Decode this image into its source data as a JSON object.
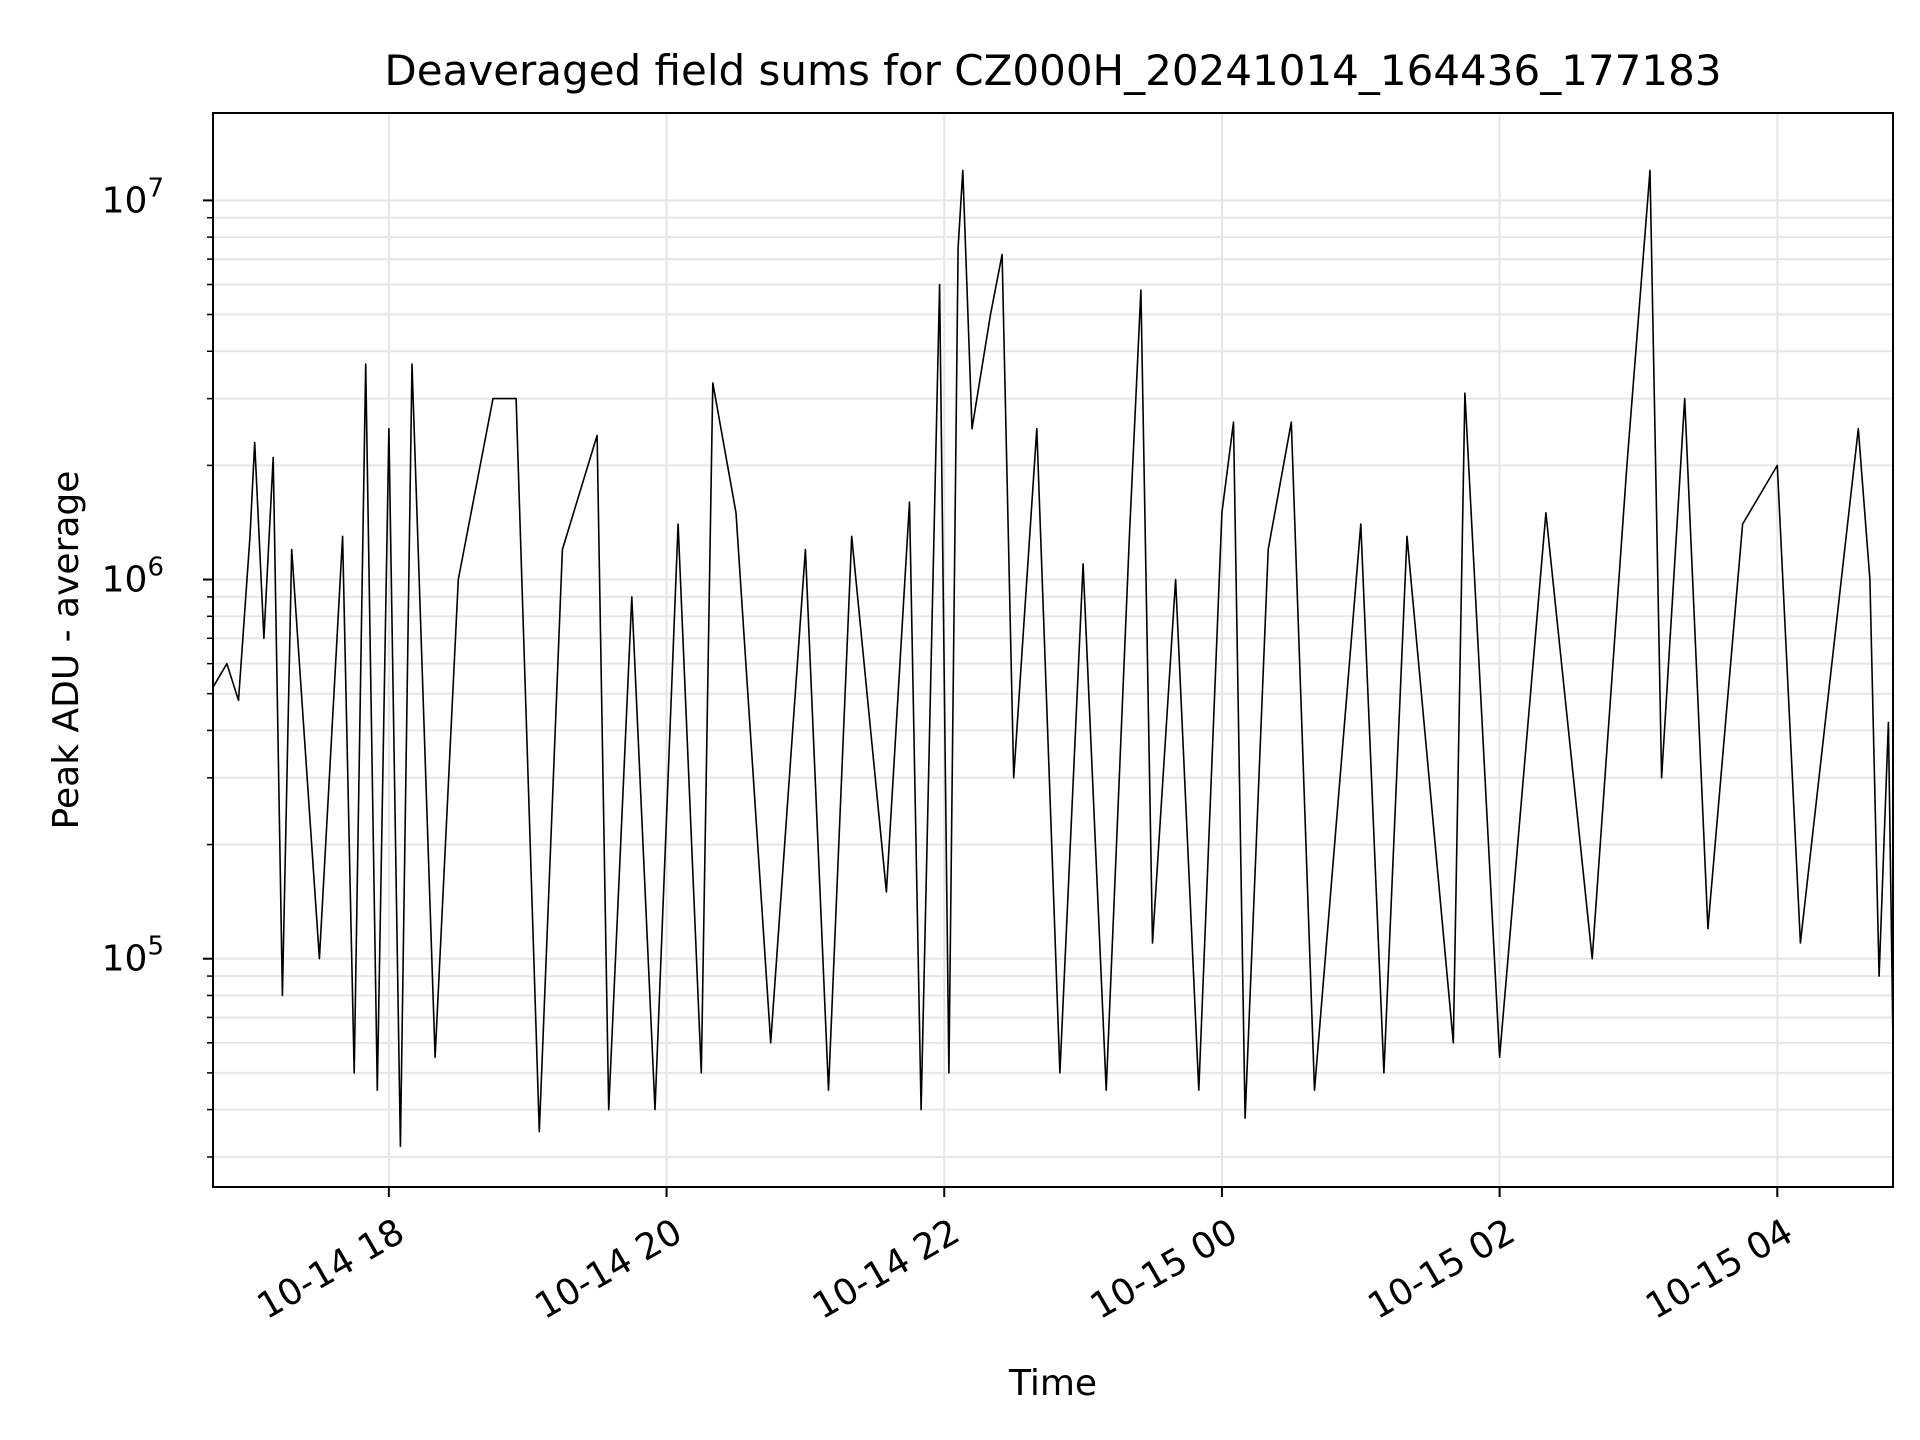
{
  "chart_data": {
    "type": "line",
    "title": "Deaveraged field sums for CZ000H_20241014_164436_177183",
    "xlabel": "Time",
    "ylabel": "Peak ADU - average",
    "x_axis_type": "datetime",
    "y_scale": "log",
    "xlim": [
      "2024-10-14 16:44",
      "2024-10-15 04:50"
    ],
    "ylim": [
      25000,
      17000000
    ],
    "x_ticks": [
      {
        "label": "10-14 18",
        "time": "2024-10-14 18:00"
      },
      {
        "label": "10-14 20",
        "time": "2024-10-14 20:00"
      },
      {
        "label": "10-14 22",
        "time": "2024-10-14 22:00"
      },
      {
        "label": "10-15 00",
        "time": "2024-10-15 00:00"
      },
      {
        "label": "10-15 02",
        "time": "2024-10-15 02:00"
      },
      {
        "label": "10-15 04",
        "time": "2024-10-15 04:00"
      }
    ],
    "y_ticks": [
      {
        "base": "10",
        "exp": "5",
        "value": 100000
      },
      {
        "base": "10",
        "exp": "6",
        "value": 1000000
      },
      {
        "base": "10",
        "exp": "7",
        "value": 10000000
      }
    ],
    "grid": true,
    "legend": "none",
    "series": [
      {
        "color": "#000000",
        "points": [
          [
            "2024-10-14 16:44",
            520000
          ],
          [
            "2024-10-14 16:50",
            600000
          ],
          [
            "2024-10-14 16:55",
            480000
          ],
          [
            "2024-10-14 17:00",
            1300000
          ],
          [
            "2024-10-14 17:02",
            2300000
          ],
          [
            "2024-10-14 17:06",
            700000
          ],
          [
            "2024-10-14 17:10",
            2100000
          ],
          [
            "2024-10-14 17:14",
            80000
          ],
          [
            "2024-10-14 17:18",
            1200000
          ],
          [
            "2024-10-14 17:30",
            100000
          ],
          [
            "2024-10-14 17:40",
            1300000
          ],
          [
            "2024-10-14 17:45",
            50000
          ],
          [
            "2024-10-14 17:50",
            3700000
          ],
          [
            "2024-10-14 17:55",
            45000
          ],
          [
            "2024-10-14 18:00",
            2500000
          ],
          [
            "2024-10-14 18:05",
            32000
          ],
          [
            "2024-10-14 18:10",
            3700000
          ],
          [
            "2024-10-14 18:20",
            55000
          ],
          [
            "2024-10-14 18:30",
            1000000
          ],
          [
            "2024-10-14 18:45",
            3000000
          ],
          [
            "2024-10-14 18:55",
            3000000
          ],
          [
            "2024-10-14 19:05",
            35000
          ],
          [
            "2024-10-14 19:15",
            1200000
          ],
          [
            "2024-10-14 19:30",
            2400000
          ],
          [
            "2024-10-14 19:35",
            40000
          ],
          [
            "2024-10-14 19:45",
            900000
          ],
          [
            "2024-10-14 19:55",
            40000
          ],
          [
            "2024-10-14 20:05",
            1400000
          ],
          [
            "2024-10-14 20:15",
            50000
          ],
          [
            "2024-10-14 20:20",
            3300000
          ],
          [
            "2024-10-14 20:30",
            1500000
          ],
          [
            "2024-10-14 20:45",
            60000
          ],
          [
            "2024-10-14 21:00",
            1200000
          ],
          [
            "2024-10-14 21:10",
            45000
          ],
          [
            "2024-10-14 21:20",
            1300000
          ],
          [
            "2024-10-14 21:35",
            150000
          ],
          [
            "2024-10-14 21:45",
            1600000
          ],
          [
            "2024-10-14 21:50",
            40000
          ],
          [
            "2024-10-14 21:58",
            6000000
          ],
          [
            "2024-10-14 22:02",
            50000
          ],
          [
            "2024-10-14 22:06",
            7500000
          ],
          [
            "2024-10-14 22:08",
            12000000
          ],
          [
            "2024-10-14 22:12",
            2500000
          ],
          [
            "2024-10-14 22:20",
            5000000
          ],
          [
            "2024-10-14 22:25",
            7200000
          ],
          [
            "2024-10-14 22:30",
            300000
          ],
          [
            "2024-10-14 22:40",
            2500000
          ],
          [
            "2024-10-14 22:50",
            50000
          ],
          [
            "2024-10-14 23:00",
            1100000
          ],
          [
            "2024-10-14 23:10",
            45000
          ],
          [
            "2024-10-14 23:20",
            1300000
          ],
          [
            "2024-10-14 23:25",
            5800000
          ],
          [
            "2024-10-14 23:30",
            110000
          ],
          [
            "2024-10-14 23:40",
            1000000
          ],
          [
            "2024-10-14 23:50",
            45000
          ],
          [
            "2024-10-15 00:00",
            1500000
          ],
          [
            "2024-10-15 00:05",
            2600000
          ],
          [
            "2024-10-15 00:10",
            38000
          ],
          [
            "2024-10-15 00:20",
            1200000
          ],
          [
            "2024-10-15 00:30",
            2600000
          ],
          [
            "2024-10-15 00:40",
            45000
          ],
          [
            "2024-10-15 01:00",
            1400000
          ],
          [
            "2024-10-15 01:10",
            50000
          ],
          [
            "2024-10-15 01:20",
            1300000
          ],
          [
            "2024-10-15 01:40",
            60000
          ],
          [
            "2024-10-15 01:45",
            3100000
          ],
          [
            "2024-10-15 02:00",
            55000
          ],
          [
            "2024-10-15 02:20",
            1500000
          ],
          [
            "2024-10-15 02:40",
            100000
          ],
          [
            "2024-10-15 02:55",
            2000000
          ],
          [
            "2024-10-15 03:05",
            12000000
          ],
          [
            "2024-10-15 03:10",
            300000
          ],
          [
            "2024-10-15 03:20",
            3000000
          ],
          [
            "2024-10-15 03:30",
            120000
          ],
          [
            "2024-10-15 03:45",
            1400000
          ],
          [
            "2024-10-15 04:00",
            2000000
          ],
          [
            "2024-10-15 04:10",
            110000
          ],
          [
            "2024-10-15 04:35",
            2500000
          ],
          [
            "2024-10-15 04:40",
            1000000
          ],
          [
            "2024-10-15 04:44",
            90000
          ],
          [
            "2024-10-15 04:48",
            420000
          ],
          [
            "2024-10-15 04:50",
            60000
          ]
        ]
      }
    ]
  }
}
